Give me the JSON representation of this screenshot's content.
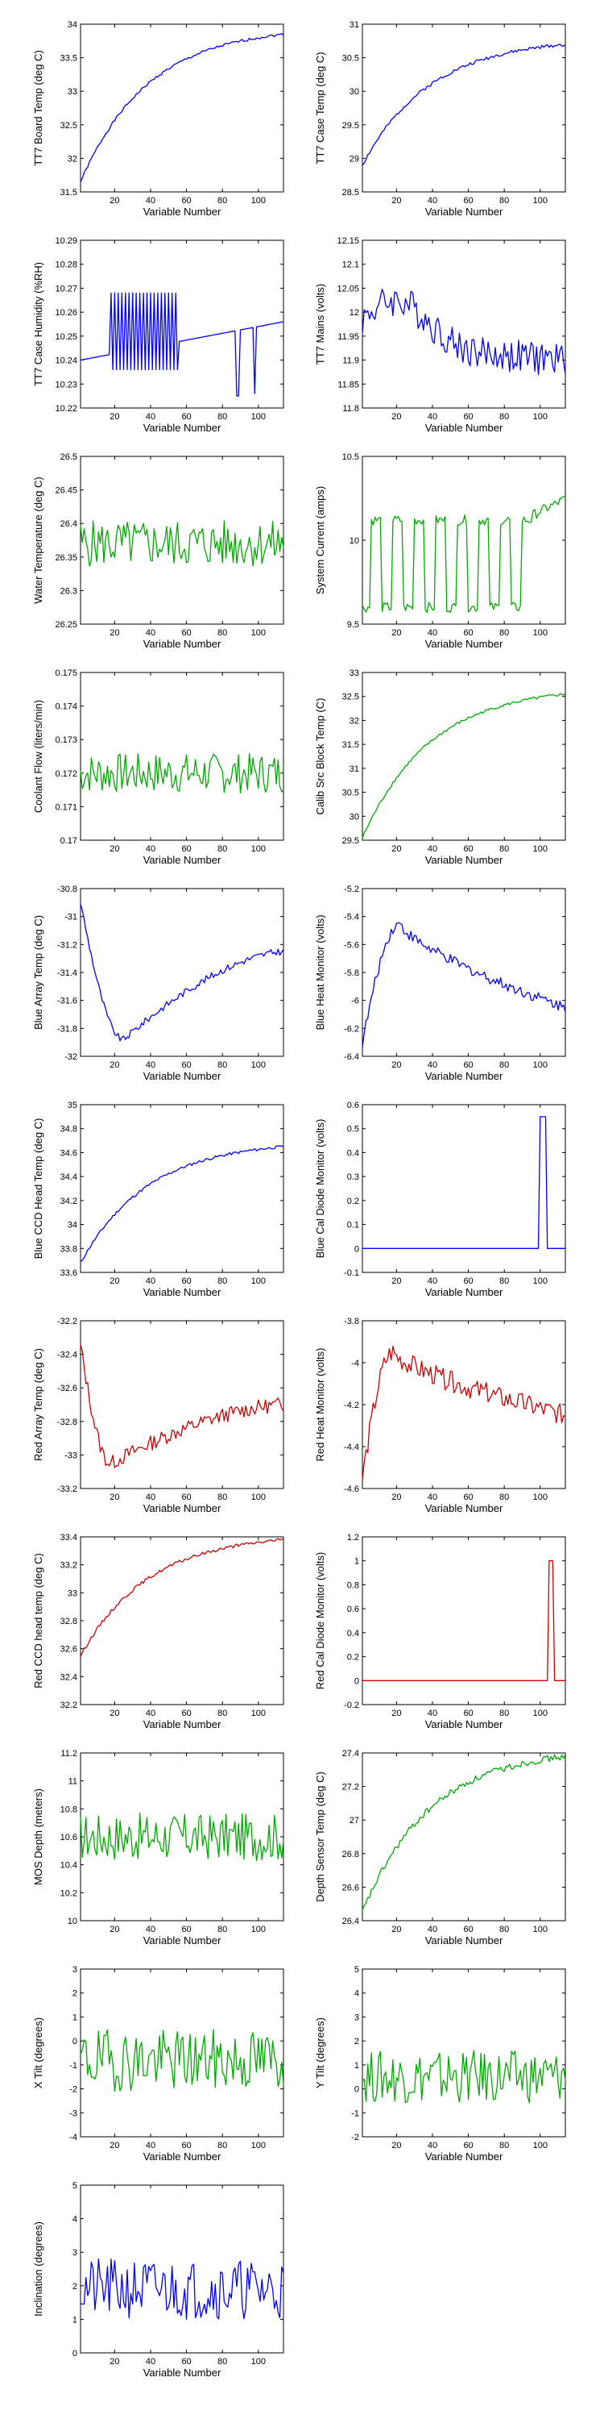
{
  "chart_data": [
    {
      "type": "line",
      "xlabel": "Variable Number",
      "ylabel": "TT7 Board Temp (deg C)",
      "color": "#0000ff",
      "xlim": [
        1,
        114
      ],
      "ylim": [
        31.5,
        34
      ],
      "yticks": [
        "31.5",
        "32",
        "32.5",
        "33",
        "33.5",
        "34"
      ],
      "xticks": [
        "20",
        "40",
        "60",
        "80",
        "100"
      ],
      "shape": "rise",
      "y_start": 31.65,
      "y_end": 33.85,
      "noise": 0.02,
      "seed": 1
    },
    {
      "type": "line",
      "xlabel": "Variable Number",
      "ylabel": "TT7 Case Temp (deg C)",
      "color": "#0000ff",
      "xlim": [
        1,
        114
      ],
      "ylim": [
        28.5,
        31
      ],
      "yticks": [
        "28.5",
        "29",
        "29.5",
        "30",
        "30.5",
        "31"
      ],
      "xticks": [
        "20",
        "40",
        "60",
        "80",
        "100"
      ],
      "shape": "rise",
      "y_start": 28.9,
      "y_end": 30.7,
      "noise": 0.025,
      "seed": 2
    },
    {
      "type": "line",
      "xlabel": "Variable Number",
      "ylabel": "TT7 Case Humidity (%RH)",
      "color": "#0000ff",
      "xlim": [
        1,
        114
      ],
      "ylim": [
        10.22,
        10.29
      ],
      "yticks": [
        "10.22",
        "10.23",
        "10.24",
        "10.25",
        "10.26",
        "10.27",
        "10.28",
        "10.29"
      ],
      "xticks": [
        "20",
        "40",
        "60",
        "80",
        "100"
      ],
      "shape": "humidity",
      "noise": 0,
      "seed": 3
    },
    {
      "type": "line",
      "xlabel": "Variable Number",
      "ylabel": "TT7 Mains  (volts)",
      "color": "#0000ff",
      "xlim": [
        1,
        114
      ],
      "ylim": [
        11.8,
        12.15
      ],
      "yticks": [
        "11.8",
        "11.85",
        "11.9",
        "11.95",
        "12",
        "12.05",
        "12.1",
        "12.15"
      ],
      "xticks": [
        "20",
        "40",
        "60",
        "80",
        "100"
      ],
      "shape": "hump",
      "base": 11.93,
      "amp": 0.1,
      "peak": 20,
      "noise": 0.035,
      "seed": 4
    },
    {
      "type": "line",
      "xlabel": "Variable Number",
      "ylabel": "Water Temperature (deg C)",
      "color": "#00aa00",
      "xlim": [
        1,
        114
      ],
      "ylim": [
        26.25,
        26.5
      ],
      "yticks": [
        "26.25",
        "26.3",
        "26.35",
        "26.4",
        "26.45",
        "26.5"
      ],
      "xticks": [
        "20",
        "40",
        "60",
        "80",
        "100"
      ],
      "shape": "noise",
      "base": 26.37,
      "noise": 0.035,
      "seed": 5
    },
    {
      "type": "line",
      "xlabel": "Variable Number",
      "ylabel": "System Current (amps)",
      "color": "#00aa00",
      "xlim": [
        1,
        114
      ],
      "ylim": [
        9.5,
        10.5
      ],
      "yticks": [
        "9.5",
        "10",
        "10.5"
      ],
      "xticks": [
        "20",
        "40",
        "60",
        "80",
        "100"
      ],
      "shape": "square",
      "low": 9.6,
      "high": 10.12,
      "noise": 0.03,
      "seed": 6
    },
    {
      "type": "line",
      "xlabel": "Variable Number",
      "ylabel": "Coolant Flow (liters/min)",
      "color": "#00aa00",
      "xlim": [
        1,
        114
      ],
      "ylim": [
        0.17,
        0.175
      ],
      "yticks": [
        "0.17",
        "0.171",
        "0.172",
        "0.173",
        "0.174",
        "0.175"
      ],
      "xticks": [
        "20",
        "40",
        "60",
        "80",
        "100"
      ],
      "shape": "noise",
      "base": 0.172,
      "noise": 0.0006,
      "seed": 7
    },
    {
      "type": "line",
      "xlabel": "Variable Number",
      "ylabel": "Calib Src Block Temp (C)",
      "color": "#00aa00",
      "xlim": [
        1,
        114
      ],
      "ylim": [
        29.5,
        33
      ],
      "yticks": [
        "29.5",
        "30",
        "30.5",
        "31",
        "31.5",
        "32",
        "32.5",
        "33"
      ],
      "xticks": [
        "20",
        "40",
        "60",
        "80",
        "100"
      ],
      "shape": "rise",
      "y_start": 29.55,
      "y_end": 32.55,
      "noise": 0.03,
      "seed": 8
    },
    {
      "type": "line",
      "xlabel": "Variable Number",
      "ylabel": "Blue Array Temp (deg C)",
      "color": "#0000ff",
      "xlim": [
        1,
        114
      ],
      "ylim": [
        -32,
        -30.8
      ],
      "yticks": [
        "-32",
        "-31.8",
        "-31.6",
        "-31.4",
        "-31.2",
        "-31",
        "-30.8"
      ],
      "xticks": [
        "20",
        "40",
        "60",
        "80",
        "100"
      ],
      "shape": "dip",
      "y_start": -30.9,
      "y_min": -31.88,
      "y_end": -31.25,
      "x_min": 25,
      "noise": 0.025,
      "seed": 9
    },
    {
      "type": "line",
      "xlabel": "Variable Number",
      "ylabel": "Blue Heat Monitor (volts)",
      "color": "#0000ff",
      "xlim": [
        1,
        114
      ],
      "ylim": [
        -6.4,
        -5.2
      ],
      "yticks": [
        "-6.4",
        "-6.2",
        "-6",
        "-5.8",
        "-5.6",
        "-5.4",
        "-5.2"
      ],
      "xticks": [
        "20",
        "40",
        "60",
        "80",
        "100"
      ],
      "shape": "overshoot",
      "y_start": -6.3,
      "y_peak": -5.45,
      "y_end": -6.05,
      "x_peak": 22,
      "noise": 0.04,
      "seed": 10
    },
    {
      "type": "line",
      "xlabel": "Variable Number",
      "ylabel": "Blue CCD Head Temp (deg C)",
      "color": "#0000ff",
      "xlim": [
        1,
        114
      ],
      "ylim": [
        33.6,
        35
      ],
      "yticks": [
        "33.6",
        "33.8",
        "34",
        "34.2",
        "34.4",
        "34.6",
        "34.8",
        "35"
      ],
      "xticks": [
        "20",
        "40",
        "60",
        "80",
        "100"
      ],
      "shape": "rise",
      "y_start": 33.68,
      "y_end": 34.65,
      "noise": 0.012,
      "seed": 11
    },
    {
      "type": "line",
      "xlabel": "Variable Number",
      "ylabel": "Blue Cal Diode Monitor (volts)",
      "color": "#0000ff",
      "xlim": [
        1,
        114
      ],
      "ylim": [
        -0.1,
        0.6
      ],
      "yticks": [
        "-0.1",
        "0",
        "0.1",
        "0.2",
        "0.3",
        "0.4",
        "0.5",
        "0.6"
      ],
      "xticks": [
        "20",
        "40",
        "60",
        "80",
        "100"
      ],
      "shape": "spike",
      "base": 0,
      "spike_level": 0.55,
      "spike_at": 100,
      "spike_width": 4,
      "noise": 0,
      "seed": 12
    },
    {
      "type": "line",
      "xlabel": "Variable Number",
      "ylabel": "Red Array Temp (deg C)",
      "color": "#cc0000",
      "xlim": [
        1,
        114
      ],
      "ylim": [
        -33.2,
        -32.2
      ],
      "yticks": [
        "-33.2",
        "-33",
        "-32.8",
        "-32.6",
        "-32.4",
        "-32.2"
      ],
      "xticks": [
        "20",
        "40",
        "60",
        "80",
        "100"
      ],
      "shape": "dip",
      "y_start": -32.35,
      "y_min": -33.05,
      "y_end": -32.7,
      "x_min": 18,
      "noise": 0.045,
      "seed": 13
    },
    {
      "type": "line",
      "xlabel": "Variable Number",
      "ylabel": "Red Heat Monitor (volts)",
      "color": "#cc0000",
      "xlim": [
        1,
        114
      ],
      "ylim": [
        -4.6,
        -3.8
      ],
      "yticks": [
        "-4.6",
        "-4.4",
        "-4.2",
        "-4",
        "-3.8"
      ],
      "xticks": [
        "20",
        "40",
        "60",
        "80",
        "100"
      ],
      "shape": "overshoot",
      "y_start": -4.55,
      "y_peak": -3.95,
      "y_end": -4.25,
      "x_peak": 18,
      "noise": 0.05,
      "seed": 14
    },
    {
      "type": "line",
      "xlabel": "Variable Number",
      "ylabel": "Red CCD head temp (deg C)",
      "color": "#cc0000",
      "xlim": [
        1,
        114
      ],
      "ylim": [
        32.2,
        33.4
      ],
      "yticks": [
        "32.2",
        "32.4",
        "32.6",
        "32.8",
        "33",
        "33.2",
        "33.4"
      ],
      "xticks": [
        "20",
        "40",
        "60",
        "80",
        "100"
      ],
      "shape": "rise",
      "y_start": 32.55,
      "y_end": 33.38,
      "noise": 0.012,
      "seed": 15
    },
    {
      "type": "line",
      "xlabel": "Variable Number",
      "ylabel": "Red Cal Diode Monitor (volts)",
      "color": "#cc0000",
      "xlim": [
        1,
        114
      ],
      "ylim": [
        -0.2,
        1.2
      ],
      "yticks": [
        "-0.2",
        "0",
        "0.2",
        "0.4",
        "0.6",
        "0.8",
        "1",
        "1.2"
      ],
      "xticks": [
        "20",
        "40",
        "60",
        "80",
        "100"
      ],
      "shape": "spike",
      "base": 0,
      "spike_level": 1,
      "spike_at": 105,
      "spike_width": 3,
      "noise": 0,
      "seed": 16
    },
    {
      "type": "line",
      "xlabel": "Variable Number",
      "ylabel": "MOS Depth  (meters)",
      "color": "#00aa00",
      "xlim": [
        1,
        114
      ],
      "ylim": [
        10,
        11.2
      ],
      "yticks": [
        "10",
        "10.2",
        "10.4",
        "10.6",
        "10.8",
        "11",
        "11.2"
      ],
      "xticks": [
        "20",
        "40",
        "60",
        "80",
        "100"
      ],
      "shape": "noise",
      "base": 10.6,
      "noise": 0.17,
      "seed": 17
    },
    {
      "type": "line",
      "xlabel": "Variable Number",
      "ylabel": "Depth Sensor Temp (deg C)",
      "color": "#00aa00",
      "xlim": [
        1,
        114
      ],
      "ylim": [
        26.4,
        27.4
      ],
      "yticks": [
        "26.4",
        "26.6",
        "26.8",
        "27",
        "27.2",
        "27.4"
      ],
      "xticks": [
        "20",
        "40",
        "60",
        "80",
        "100"
      ],
      "shape": "rise",
      "y_start": 26.45,
      "y_end": 27.38,
      "noise": 0.02,
      "seed": 18
    },
    {
      "type": "line",
      "xlabel": "Variable Number",
      "ylabel": "X Tilt  (degrees)",
      "color": "#00aa00",
      "xlim": [
        1,
        114
      ],
      "ylim": [
        -4,
        3
      ],
      "yticks": [
        "-4",
        "-3",
        "-2",
        "-1",
        "0",
        "1",
        "2",
        "3"
      ],
      "xticks": [
        "20",
        "40",
        "60",
        "80",
        "100"
      ],
      "shape": "noise",
      "base": -0.8,
      "noise": 1.3,
      "seed": 19
    },
    {
      "type": "line",
      "xlabel": "Variable Number",
      "ylabel": "Y Tilt  (degrees)",
      "color": "#00aa00",
      "xlim": [
        1,
        114
      ],
      "ylim": [
        -2,
        5
      ],
      "yticks": [
        "-2",
        "-1",
        "0",
        "1",
        "2",
        "3",
        "4",
        "5"
      ],
      "xticks": [
        "20",
        "40",
        "60",
        "80",
        "100"
      ],
      "shape": "noise",
      "base": 0.5,
      "noise": 1.1,
      "seed": 20
    },
    {
      "type": "line",
      "xlabel": "Variable Number",
      "ylabel": "Inclination  (degrees)",
      "color": "#0000ff",
      "xlim": [
        1,
        114
      ],
      "ylim": [
        0,
        5
      ],
      "yticks": [
        "0",
        "1",
        "2",
        "3",
        "4",
        "5"
      ],
      "xticks": [
        "20",
        "40",
        "60",
        "80",
        "100"
      ],
      "shape": "noise",
      "base": 1.9,
      "noise": 0.9,
      "seed": 21
    }
  ]
}
